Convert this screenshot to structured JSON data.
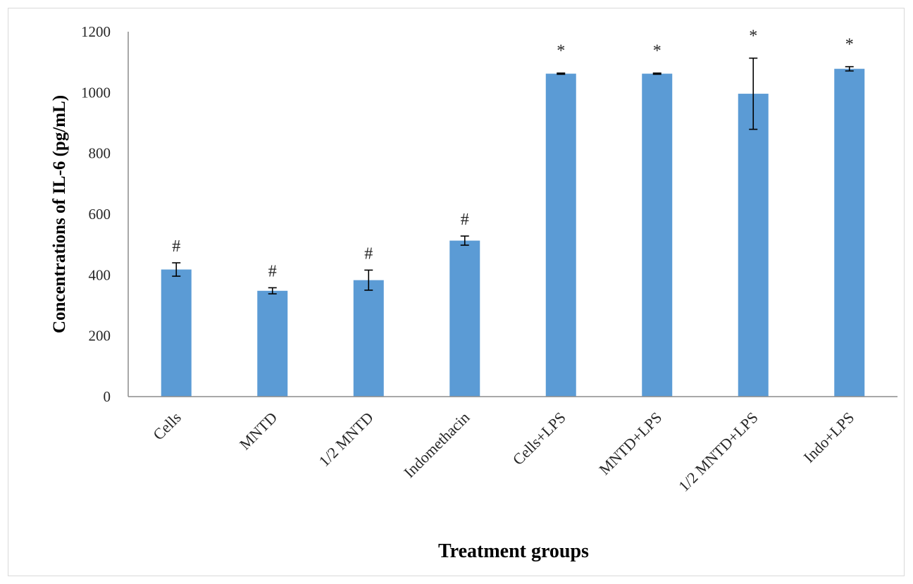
{
  "chart_data": {
    "type": "bar",
    "title": "",
    "xlabel": "Treatment groups",
    "ylabel": "Concentrations of IL-6 (pg/mL)",
    "ylim": [
      0,
      1200
    ],
    "yticks": [
      0,
      200,
      400,
      600,
      800,
      1000,
      1200
    ],
    "grid": false,
    "legend": "none",
    "bar_color": "#5b9bd5",
    "categories": [
      "Cells",
      "MNTD",
      "1/2 MNTD",
      "Indomethacin",
      "Cells+LPS",
      "MNTD+LPS",
      "1/2 MNTD+LPS",
      "Indo+LPS"
    ],
    "values": [
      418,
      348,
      383,
      513,
      1062,
      1062,
      996,
      1078
    ],
    "errors": [
      22,
      10,
      33,
      15,
      2,
      2,
      117,
      7
    ],
    "annotations": [
      "#",
      "#",
      "#",
      "#",
      "*",
      "*",
      "*",
      "*"
    ]
  }
}
